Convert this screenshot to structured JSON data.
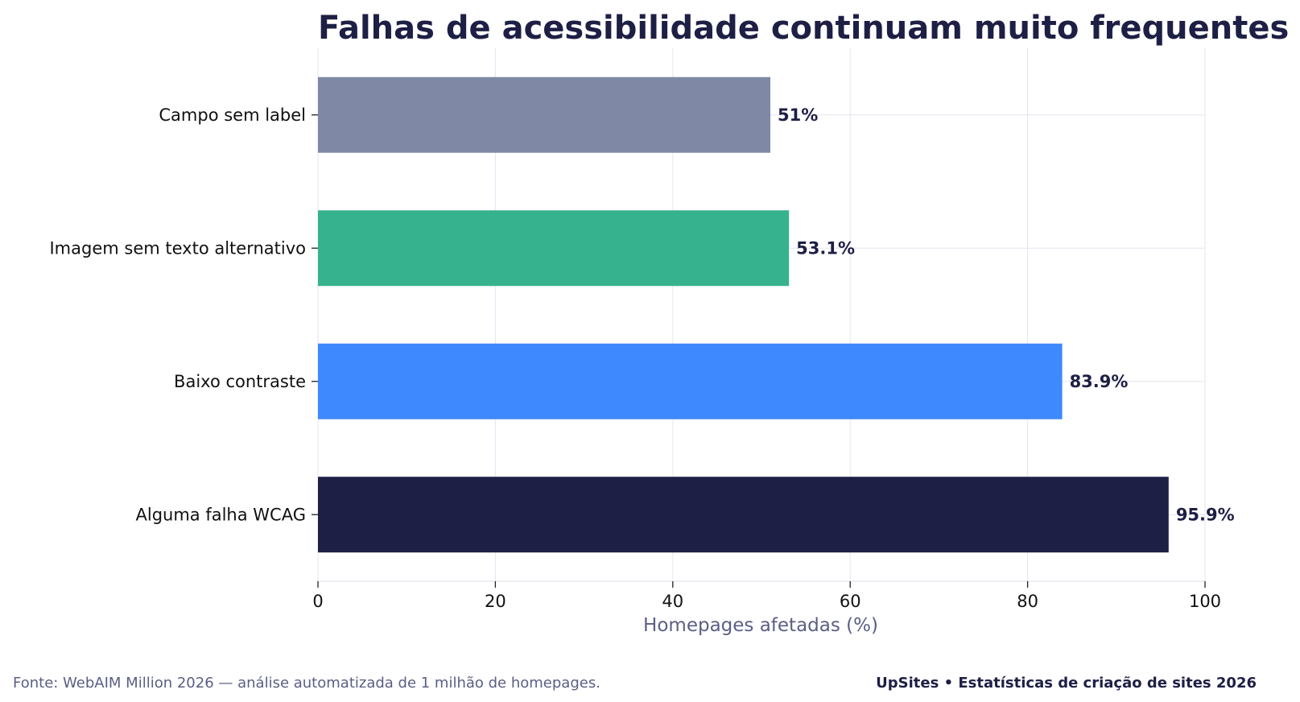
{
  "chart_data": {
    "type": "bar",
    "orientation": "horizontal",
    "title": "Falhas de acessibilidade continuam muito frequentes",
    "xlabel": "Homepages afetadas (%)",
    "ylabel": "",
    "xlim": [
      0,
      100
    ],
    "xticks": [
      0,
      20,
      40,
      60,
      80,
      100
    ],
    "grid": true,
    "categories": [
      "Campo sem label",
      "Imagem sem texto alternativo",
      "Baixo contraste",
      "Alguma falha WCAG"
    ],
    "values": [
      51,
      53.1,
      83.9,
      95.9
    ],
    "value_labels": [
      "51%",
      "53.1%",
      "83.9%",
      "95.9%"
    ],
    "colors": [
      "#7f89a5",
      "#36b38e",
      "#3d89fd",
      "#1e1f45"
    ]
  },
  "footer": {
    "source": "Fonte: WebAIM Million 2026 — análise automatizada de 1 milhão de homepages.",
    "brand": "UpSites • Estatísticas de criação de sites 2026"
  }
}
